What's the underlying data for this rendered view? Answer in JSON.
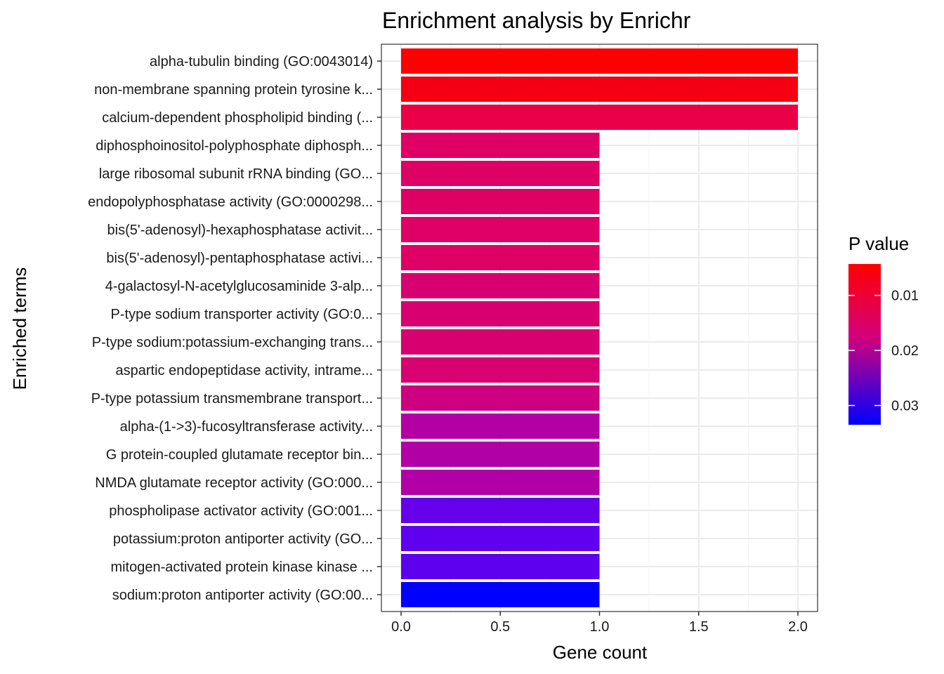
{
  "chart_data": {
    "type": "bar",
    "orientation": "horizontal",
    "title": "Enrichment analysis by Enrichr",
    "xlabel": "Gene count",
    "ylabel": "Enriched terms",
    "xlim": [
      0,
      2.0
    ],
    "x_ticks": [
      "0.0",
      "0.5",
      "1.0",
      "1.5",
      "2.0"
    ],
    "x_tick_values": [
      0,
      0.5,
      1.0,
      1.5,
      2.0
    ],
    "grid": true,
    "categories": [
      "alpha-tubulin binding (GO:0043014)",
      "non-membrane spanning protein tyrosine k...",
      "calcium-dependent phospholipid binding (...",
      "diphosphoinositol-polyphosphate diphosph...",
      "large ribosomal subunit rRNA binding (GO...",
      "endopolyphosphatase activity (GO:0000298...",
      "bis(5'-adenosyl)-hexaphosphatase activit...",
      "bis(5'-adenosyl)-pentaphosphatase activi...",
      "4-galactosyl-N-acetylglucosaminide 3-alp...",
      "P-type sodium transporter activity (GO:0...",
      "P-type sodium:potassium-exchanging trans...",
      "aspartic endopeptidase activity, intrame...",
      "P-type potassium transmembrane transport...",
      "alpha-(1->3)-fucosyltransferase activity...",
      "G protein-coupled glutamate receptor bin...",
      "NMDA glutamate receptor activity (GO:000...",
      "phospholipase activator activity (GO:001...",
      "potassium:proton antiporter activity (GO...",
      "mitogen-activated protein kinase kinase ...",
      "sodium:proton antiporter activity (GO:00..."
    ],
    "values": [
      2,
      2,
      2,
      1,
      1,
      1,
      1,
      1,
      1,
      1,
      1,
      1,
      1,
      1,
      1,
      1,
      1,
      1,
      1,
      1
    ],
    "p_values": [
      0.0043,
      0.0062,
      0.0078,
      0.0135,
      0.0135,
      0.0135,
      0.0135,
      0.0135,
      0.0155,
      0.0155,
      0.0155,
      0.0155,
      0.0175,
      0.0215,
      0.0225,
      0.0225,
      0.0285,
      0.0295,
      0.0295,
      0.0335
    ],
    "fill_colors": [
      "#ff0000",
      "#f40012",
      "#ea0046",
      "#de0064",
      "#de0064",
      "#de0064",
      "#de0064",
      "#de0064",
      "#d80070",
      "#d80070",
      "#d80070",
      "#d80070",
      "#cc0080",
      "#b300a4",
      "#b000a6",
      "#b000a6",
      "#6600ea",
      "#6000ee",
      "#5e00ee",
      "#0000ff"
    ],
    "legend": {
      "title": "P value",
      "position": "right",
      "labels": [
        "0.01",
        "0.02",
        "0.03"
      ],
      "label_values": [
        0.01,
        0.02,
        0.03
      ],
      "range": [
        0.0043,
        0.0335
      ],
      "low_color": "#ff0000",
      "high_color": "#0000ff"
    }
  }
}
